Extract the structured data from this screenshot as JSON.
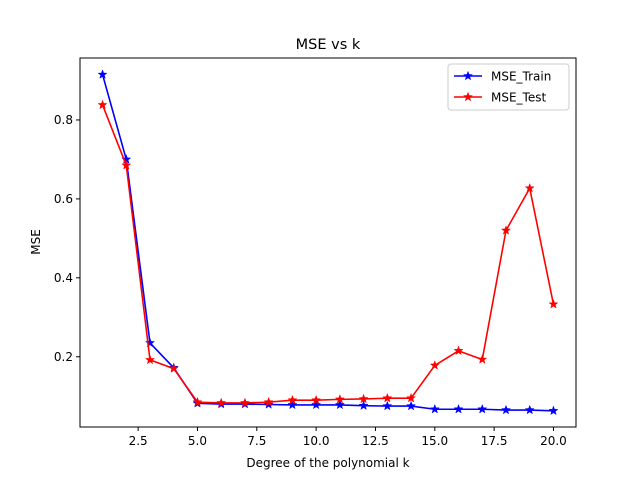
{
  "chart_data": {
    "type": "line",
    "title": "MSE vs k",
    "xlabel": "Degree of the polynomial k",
    "ylabel": "MSE",
    "xlim": [
      0.05,
      20.95
    ],
    "ylim": [
      0.022,
      0.957
    ],
    "x_ticks": [
      2.5,
      5.0,
      7.5,
      10.0,
      12.5,
      15.0,
      17.5,
      20.0
    ],
    "x_tick_labels": [
      "2.5",
      "5.0",
      "7.5",
      "10.0",
      "12.5",
      "15.0",
      "17.5",
      "20.0"
    ],
    "y_ticks": [
      0.2,
      0.4,
      0.6,
      0.8
    ],
    "y_tick_labels": [
      "0.2",
      "0.4",
      "0.6",
      "0.8"
    ],
    "grid": false,
    "legend_position": "top-right",
    "x": [
      1,
      2,
      3,
      4,
      5,
      6,
      7,
      8,
      9,
      10,
      11,
      12,
      13,
      14,
      15,
      16,
      17,
      18,
      19,
      20
    ],
    "series": [
      {
        "name": "MSE_Train",
        "color": "#0000ff",
        "marker": "star",
        "values": [
          0.915,
          0.7,
          0.235,
          0.172,
          0.082,
          0.08,
          0.08,
          0.079,
          0.078,
          0.078,
          0.078,
          0.076,
          0.075,
          0.075,
          0.067,
          0.067,
          0.067,
          0.065,
          0.065,
          0.063
        ]
      },
      {
        "name": "MSE_Test",
        "color": "#ff0000",
        "marker": "star",
        "values": [
          0.838,
          0.685,
          0.192,
          0.17,
          0.085,
          0.083,
          0.083,
          0.085,
          0.09,
          0.09,
          0.092,
          0.093,
          0.095,
          0.095,
          0.178,
          0.215,
          0.193,
          0.52,
          0.627,
          0.333
        ]
      }
    ]
  }
}
